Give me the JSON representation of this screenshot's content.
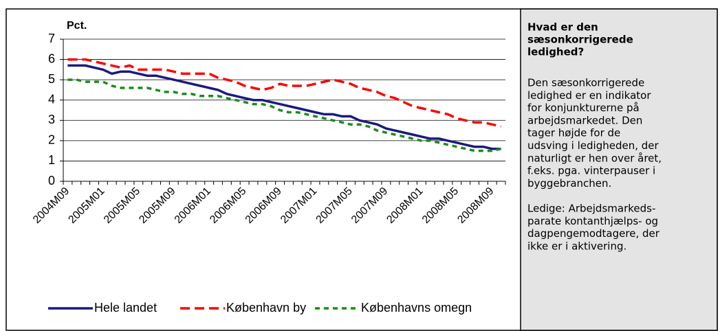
{
  "chart_data": {
    "type": "line",
    "y_label": "Pct.",
    "categories": [
      "2004M09",
      null,
      null,
      null,
      "2005M01",
      null,
      null,
      null,
      "2005M05",
      null,
      null,
      null,
      "2005M09",
      null,
      null,
      null,
      "2006M01",
      null,
      null,
      null,
      "2006M05",
      null,
      null,
      null,
      "2006M09",
      null,
      null,
      null,
      "2007M01",
      null,
      null,
      null,
      "2007M05",
      null,
      null,
      null,
      "2007M09",
      null,
      null,
      null,
      "2008M01",
      null,
      null,
      null,
      "2008M05",
      null,
      null,
      null,
      "2008M09",
      null
    ],
    "series": [
      {
        "name": "Hele landet",
        "color": "#1a1a80",
        "dash": "none",
        "width": 3.5,
        "values": [
          5.7,
          5.7,
          5.7,
          5.6,
          5.5,
          5.3,
          5.4,
          5.4,
          5.3,
          5.2,
          5.2,
          5.1,
          5.0,
          4.9,
          4.8,
          4.7,
          4.6,
          4.5,
          4.3,
          4.2,
          4.1,
          4.0,
          4.0,
          3.9,
          3.8,
          3.7,
          3.6,
          3.5,
          3.4,
          3.3,
          3.3,
          3.2,
          3.2,
          3.0,
          2.9,
          2.8,
          2.6,
          2.5,
          2.4,
          2.3,
          2.2,
          2.1,
          2.1,
          2.0,
          1.9,
          1.8,
          1.7,
          1.7,
          1.6,
          1.6
        ]
      },
      {
        "name": "København by",
        "color": "#ff0000",
        "dash": "14 7",
        "width": 3.5,
        "values": [
          6.0,
          6.0,
          6.0,
          5.9,
          5.8,
          5.7,
          5.6,
          5.7,
          5.5,
          5.5,
          5.5,
          5.5,
          5.4,
          5.3,
          5.3,
          5.3,
          5.3,
          5.1,
          5.0,
          4.9,
          4.7,
          4.6,
          4.5,
          4.6,
          4.8,
          4.7,
          4.7,
          4.7,
          4.8,
          4.9,
          5.0,
          4.9,
          4.8,
          4.6,
          4.5,
          4.4,
          4.2,
          4.1,
          3.9,
          3.7,
          3.6,
          3.5,
          3.4,
          3.3,
          3.1,
          3.0,
          2.9,
          2.9,
          2.8,
          2.7
        ]
      },
      {
        "name": "Københavns omegn",
        "color": "#1a8c1a",
        "dash": "7 6",
        "width": 3.5,
        "values": [
          5.0,
          5.0,
          4.9,
          4.9,
          4.9,
          4.7,
          4.6,
          4.6,
          4.6,
          4.6,
          4.5,
          4.4,
          4.4,
          4.3,
          4.3,
          4.2,
          4.2,
          4.2,
          4.1,
          4.0,
          3.9,
          3.8,
          3.8,
          3.7,
          3.5,
          3.4,
          3.4,
          3.3,
          3.2,
          3.1,
          3.0,
          2.9,
          2.8,
          2.8,
          2.7,
          2.5,
          2.4,
          2.3,
          2.2,
          2.1,
          2.0,
          2.0,
          1.9,
          1.8,
          1.7,
          1.6,
          1.5,
          1.5,
          1.5,
          1.6
        ]
      }
    ],
    "ylim": [
      0,
      7
    ],
    "yticks": [
      0,
      1,
      2,
      3,
      4,
      5,
      6,
      7
    ],
    "grid": true,
    "legend": "bottom"
  },
  "sidebar": {
    "title_lines": [
      "Hvad er den",
      "sæsonkorrigerede",
      "ledighed?"
    ],
    "paragraphs": [
      [
        "Den sæsonkorrigerede",
        "ledighed er en indikator",
        "for konjunkturerne på",
        "arbejdsmarkedet. Den",
        "tager højde for de",
        "udsving i ledigheden, der",
        "naturligt er hen over året,",
        "f.eks. pga. vinterpauser i",
        "byggebranchen."
      ],
      [
        "Ledige: Arbejdsmarkeds-",
        "parate kontanthjælps- og",
        "dagpengemodtagere, der",
        "ikke er i aktivering."
      ]
    ]
  }
}
